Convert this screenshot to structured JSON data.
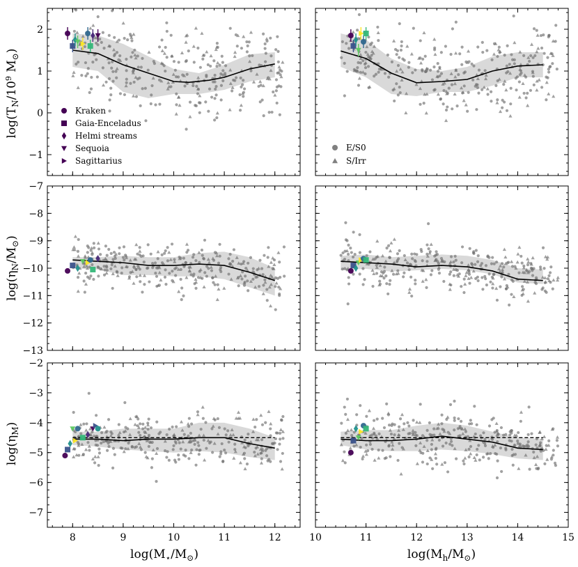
{
  "chart_data": {
    "type": "scatter",
    "layout": "3 rows x 2 columns, shared x per column, shared y per row",
    "columns": [
      {
        "xlabel": "log(M⋆/M⊙)",
        "xlim": [
          7.5,
          12.5
        ],
        "xticks": [
          8,
          9,
          10,
          11,
          12
        ]
      },
      {
        "xlabel": "log(Mh/M⊙)",
        "xlim": [
          10,
          15
        ],
        "xticks": [
          10,
          11,
          12,
          13,
          14,
          15
        ]
      }
    ],
    "rows": [
      {
        "ylabel": "log(TN/10⁹ M⊙)",
        "ylim": [
          -1.5,
          2.5
        ],
        "yticks": [
          -1,
          0,
          1,
          2
        ]
      },
      {
        "ylabel": "log(ηN/M⊙)",
        "ylim": [
          -13,
          -7
        ],
        "yticks": [
          -13,
          -12,
          -11,
          -10,
          -9,
          -8,
          -7
        ]
      },
      {
        "ylabel": "log(ηM)",
        "ylim": [
          -7.5,
          -2
        ],
        "yticks": [
          -7,
          -6,
          -5,
          -4,
          -3,
          -2
        ]
      }
    ],
    "tick_labels": {
      "x_left": [
        "8",
        "9",
        "10",
        "11",
        "12"
      ],
      "x_right": [
        "10",
        "11",
        "12",
        "13",
        "14",
        "15"
      ],
      "y_row0": [
        "−1",
        "0",
        "1",
        "2"
      ],
      "y_row1": [
        "−13",
        "−12",
        "−11",
        "−10",
        "−9",
        "−8",
        "−7"
      ],
      "y_row2": [
        "−7",
        "−6",
        "−5",
        "−4",
        "−3",
        "−2"
      ]
    },
    "legend_left": {
      "placement": "lower-left of top-left panel",
      "entries": [
        {
          "name": "Kraken",
          "marker": "circle",
          "color": "#440154"
        },
        {
          "name": "Gaia-Enceladus",
          "marker": "square",
          "color": "#440154"
        },
        {
          "name": "Helmi streams",
          "marker": "diamond",
          "color": "#440154"
        },
        {
          "name": "Sequoia",
          "marker": "triangle-down",
          "color": "#440154"
        },
        {
          "name": "Sagittarius",
          "marker": "triangle-right",
          "color": "#440154"
        }
      ]
    },
    "legend_right": {
      "placement": "lower-left of top-right panel",
      "entries": [
        {
          "name": "E/S0",
          "marker": "circle",
          "color": "#808080"
        },
        {
          "name": "S/Irr",
          "marker": "triangle-up",
          "color": "#808080"
        }
      ]
    },
    "panels": [
      {
        "row": 0,
        "col": 0,
        "median": {
          "x": [
            8.0,
            8.5,
            9.0,
            9.5,
            10.0,
            10.3,
            10.7,
            11.0,
            11.5,
            12.0
          ],
          "y": [
            1.5,
            1.42,
            1.15,
            0.95,
            0.75,
            0.73,
            0.78,
            0.85,
            1.05,
            1.17
          ]
        },
        "band": {
          "x": [
            8.0,
            8.5,
            9.0,
            9.5,
            10.0,
            10.5,
            11.0,
            11.5,
            12.0
          ],
          "upper": [
            1.9,
            1.85,
            1.65,
            1.35,
            1.05,
            0.95,
            1.15,
            1.4,
            1.45
          ],
          "lower": [
            1.1,
            1.0,
            0.5,
            0.35,
            0.45,
            0.45,
            0.55,
            0.75,
            0.85
          ]
        },
        "scatter_cloud": {
          "x_range": [
            8.0,
            12.2
          ],
          "y_center": [
            1.5,
            0.8,
            1.1
          ],
          "y_spread": 0.5
        },
        "mw_satellites": {
          "x": [
            7.9,
            8.0,
            8.05,
            8.1,
            8.2,
            8.3,
            8.35,
            8.4,
            8.5
          ],
          "y": [
            1.9,
            1.6,
            1.75,
            1.7,
            1.65,
            1.9,
            1.6,
            1.85,
            1.85
          ]
        }
      },
      {
        "row": 0,
        "col": 1,
        "median": {
          "x": [
            10.5,
            11.0,
            11.5,
            12.0,
            12.5,
            13.0,
            13.5,
            14.0,
            14.5
          ],
          "y": [
            1.48,
            1.3,
            0.95,
            0.72,
            0.75,
            0.8,
            1.0,
            1.12,
            1.15
          ]
        },
        "band": {
          "x": [
            10.5,
            11.0,
            11.5,
            12.0,
            12.5,
            13.0,
            13.5,
            14.0,
            14.5
          ],
          "upper": [
            1.9,
            1.75,
            1.3,
            1.05,
            1.0,
            1.1,
            1.35,
            1.45,
            1.45
          ],
          "lower": [
            1.1,
            0.85,
            0.45,
            0.4,
            0.5,
            0.5,
            0.65,
            0.85,
            0.85
          ]
        },
        "scatter_cloud": {
          "x_range": [
            10.5,
            14.8
          ],
          "y_center": [
            1.5,
            0.75,
            1.15
          ],
          "y_spread": 0.5
        },
        "mw_satellites": {
          "x": [
            10.7,
            10.75,
            10.8,
            10.85,
            10.9,
            10.95,
            11.0
          ],
          "y": [
            1.85,
            1.6,
            1.75,
            1.5,
            1.9,
            1.7,
            1.9
          ]
        }
      },
      {
        "row": 1,
        "col": 0,
        "median": {
          "x": [
            8.0,
            8.5,
            9.0,
            9.5,
            10.0,
            10.5,
            11.0,
            11.5,
            12.0
          ],
          "y": [
            -9.7,
            -9.75,
            -9.8,
            -9.9,
            -9.9,
            -9.85,
            -9.9,
            -10.15,
            -10.45
          ]
        },
        "band": {
          "x": [
            8.0,
            8.5,
            9.0,
            9.5,
            10.0,
            10.5,
            11.0,
            11.5,
            12.0
          ],
          "upper": [
            -9.6,
            -9.6,
            -9.55,
            -9.6,
            -9.6,
            -9.45,
            -9.4,
            -9.6,
            -10.0
          ],
          "lower": [
            -10.0,
            -10.05,
            -10.25,
            -10.25,
            -10.3,
            -10.3,
            -10.4,
            -10.7,
            -11.0
          ]
        },
        "scatter_cloud": {
          "x_range": [
            8.0,
            12.2
          ],
          "y_center": [
            -9.8,
            -9.9,
            -10.3
          ],
          "y_spread": 0.45
        },
        "mw_satellites": {
          "x": [
            7.9,
            8.0,
            8.1,
            8.2,
            8.3,
            8.35,
            8.4,
            8.5
          ],
          "y": [
            -10.1,
            -9.9,
            -10.0,
            -9.75,
            -9.8,
            -9.7,
            -10.05,
            -9.65
          ]
        }
      },
      {
        "row": 1,
        "col": 1,
        "median": {
          "x": [
            10.5,
            11.0,
            11.5,
            12.0,
            12.5,
            13.0,
            13.5,
            14.0,
            14.5
          ],
          "y": [
            -9.75,
            -9.8,
            -9.85,
            -9.95,
            -9.9,
            -9.95,
            -10.1,
            -10.4,
            -10.45
          ]
        },
        "band": {
          "x": [
            10.5,
            11.0,
            11.5,
            12.0,
            12.5,
            13.0,
            13.5,
            14.0,
            14.5
          ],
          "upper": [
            -9.55,
            -9.5,
            -9.6,
            -9.55,
            -9.5,
            -9.55,
            -9.7,
            -10.0,
            -10.05
          ]
        },
        "scatter_cloud": {
          "x_range": [
            10.5,
            14.8
          ],
          "y_center": [
            -9.8,
            -9.9,
            -10.4
          ],
          "y_spread": 0.45
        },
        "mw_satellites": {
          "x": [
            10.7,
            10.75,
            10.8,
            10.85,
            10.9,
            10.95,
            11.0
          ],
          "y": [
            -10.1,
            -9.9,
            -10.0,
            -9.8,
            -9.7,
            -9.65,
            -9.7
          ]
        }
      },
      {
        "row": 2,
        "col": 0,
        "median": {
          "x": [
            8.0,
            8.5,
            9.0,
            9.5,
            10.0,
            10.5,
            11.0,
            11.5,
            12.0
          ],
          "y": [
            -4.55,
            -4.55,
            -4.6,
            -4.55,
            -4.55,
            -4.5,
            -4.5,
            -4.7,
            -4.85
          ]
        },
        "band": {
          "x": [
            8.0,
            8.5,
            9.0,
            9.5,
            10.0,
            10.5,
            11.0,
            11.5,
            12.0
          ],
          "upper": [
            -4.3,
            -4.3,
            -4.2,
            -4.2,
            -4.2,
            -4.0,
            -4.0,
            -4.2,
            -4.5
          ],
          "lower": [
            -4.75,
            -4.8,
            -4.9,
            -4.95,
            -5.0,
            -4.95,
            -5.0,
            -5.15,
            -5.25
          ]
        },
        "mw_reference": {
          "x": [
            8.0,
            12.0
          ],
          "y": [
            -4.5,
            -4.5
          ]
        },
        "scatter_cloud": {
          "x_range": [
            8.0,
            12.2
          ],
          "y_center": [
            -4.55,
            -4.55,
            -4.8
          ],
          "y_spread": 0.45
        },
        "mw_satellites": {
          "x": [
            7.85,
            7.9,
            7.95,
            8.0,
            8.05,
            8.1,
            8.2,
            8.3,
            8.4,
            8.45,
            8.5
          ],
          "y": [
            -5.1,
            -4.9,
            -4.7,
            -4.2,
            -4.6,
            -4.2,
            -4.5,
            -4.4,
            -4.2,
            -4.1,
            -4.2
          ]
        }
      },
      {
        "row": 2,
        "col": 1,
        "median": {
          "x": [
            10.5,
            11.0,
            11.5,
            12.0,
            12.5,
            13.0,
            13.5,
            14.0,
            14.5
          ],
          "y": [
            -4.55,
            -4.6,
            -4.6,
            -4.55,
            -4.45,
            -4.55,
            -4.65,
            -4.85,
            -4.9
          ]
        },
        "band": {
          "x": [
            10.5,
            11.0,
            11.5,
            12.0,
            12.5,
            13.0,
            13.5,
            14.0,
            14.5
          ],
          "upper": [
            -4.3,
            -4.25,
            -4.25,
            -4.1,
            -4.0,
            -4.1,
            -4.3,
            -4.5,
            -4.55
          ],
          "lower": [
            -4.75,
            -4.9,
            -4.95,
            -4.95,
            -4.9,
            -4.95,
            -5.05,
            -5.2,
            -5.25
          ]
        },
        "mw_reference": {
          "x": [
            10.5,
            14.5
          ],
          "y": [
            -4.5,
            -4.5
          ]
        },
        "scatter_cloud": {
          "x_range": [
            10.5,
            14.8
          ],
          "y_center": [
            -4.55,
            -4.5,
            -4.85
          ],
          "y_spread": 0.45
        },
        "mw_satellites": {
          "x": [
            10.7,
            10.75,
            10.8,
            10.85,
            10.9,
            10.95,
            11.0
          ],
          "y": [
            -5.0,
            -4.6,
            -4.2,
            -4.5,
            -4.3,
            -4.1,
            -4.2
          ]
        }
      }
    ]
  }
}
